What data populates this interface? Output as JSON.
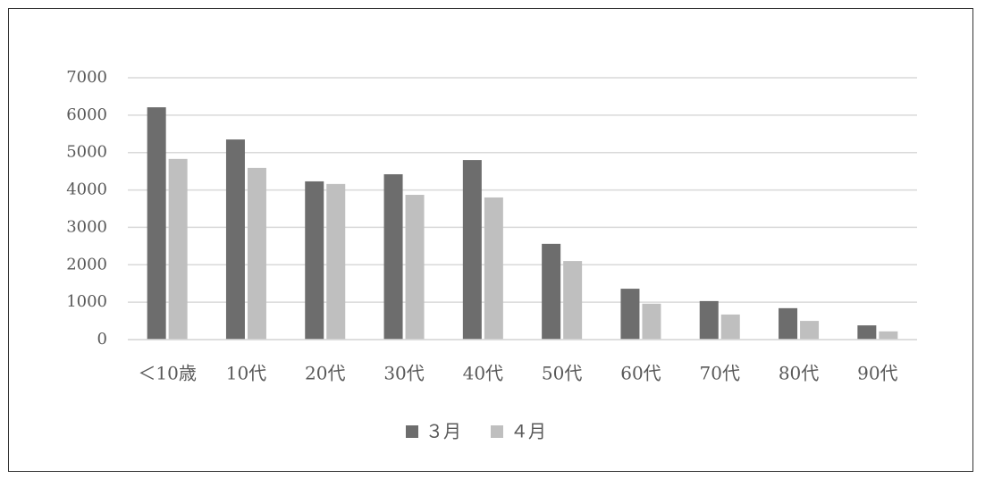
{
  "chart_data": {
    "type": "bar",
    "categories": [
      "＜10歳",
      "10代",
      "20代",
      "30代",
      "40代",
      "50代",
      "60代",
      "70代",
      "80代",
      "90代"
    ],
    "series": [
      {
        "name": "３月",
        "color": "#6d6d6d",
        "values": [
          6210,
          5350,
          4230,
          4420,
          4800,
          2560,
          1360,
          1030,
          840,
          380
        ]
      },
      {
        "name": "４月",
        "color": "#bfbfbf",
        "values": [
          4830,
          4590,
          4160,
          3870,
          3800,
          2100,
          960,
          670,
          500,
          220
        ]
      }
    ],
    "ylim": [
      0,
      7000
    ],
    "yticks": [
      0,
      1000,
      2000,
      3000,
      4000,
      5000,
      6000,
      7000
    ],
    "grid": true,
    "legend": "bottom"
  }
}
